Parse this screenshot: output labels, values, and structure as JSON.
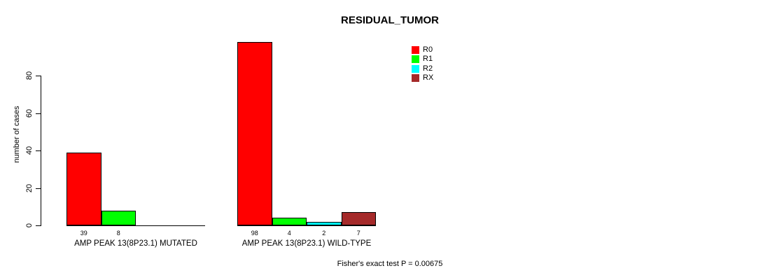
{
  "chart": {
    "title": "RESIDUAL_TUMOR",
    "ylabel": "number of cases",
    "footer": "Fisher's exact test P = 0.00675"
  },
  "chart_data": {
    "type": "bar",
    "title": "RESIDUAL_TUMOR",
    "xlabel": "",
    "ylabel": "number of cases",
    "ylim": [
      0,
      100
    ],
    "yticks": [
      0,
      20,
      40,
      60,
      80
    ],
    "grid": false,
    "legend_position": "top-right",
    "categories": [
      "AMP PEAK 13(8P23.1) MUTATED",
      "AMP PEAK 13(8P23.1) WILD-TYPE"
    ],
    "series": [
      {
        "name": "R0",
        "color": "#ff0000",
        "values": [
          39,
          98
        ]
      },
      {
        "name": "R1",
        "color": "#00ff00",
        "values": [
          8,
          4
        ]
      },
      {
        "name": "R2",
        "color": "#00ffff",
        "values": [
          0,
          2
        ]
      },
      {
        "name": "RX",
        "color": "#a52a2a",
        "values": [
          0,
          7
        ]
      }
    ],
    "bar_value_labels": {
      "shown": true,
      "hide_zero": true
    },
    "annotation": "Fisher's exact test P = 0.00675"
  }
}
